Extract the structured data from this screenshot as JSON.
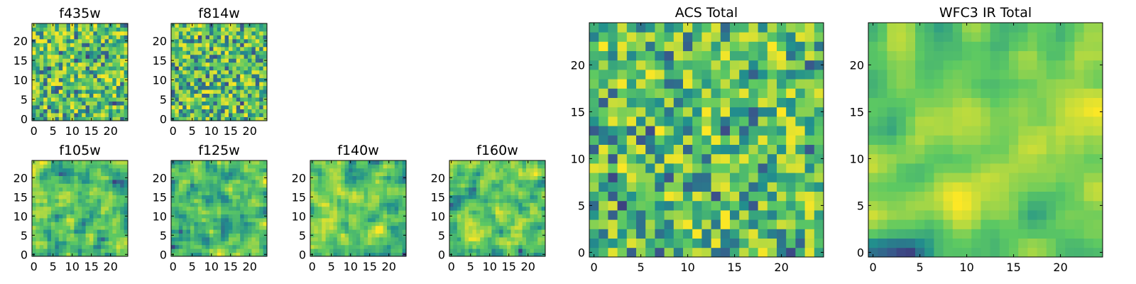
{
  "colormap": [
    "#440154",
    "#3b528b",
    "#21908d",
    "#5dc962",
    "#fde725"
  ],
  "chart_data": [
    {
      "type": "heatmap",
      "title": "f435w",
      "xticks": [
        0,
        5,
        10,
        15,
        20
      ],
      "yticks": [
        0,
        5,
        10,
        15,
        20
      ],
      "xlim": [
        0,
        24
      ],
      "ylim": [
        0,
        24
      ],
      "grid": false
    },
    {
      "type": "heatmap",
      "title": "f814w",
      "xticks": [
        0,
        5,
        10,
        15,
        20
      ],
      "yticks": [
        0,
        5,
        10,
        15,
        20
      ],
      "xlim": [
        0,
        24
      ],
      "ylim": [
        0,
        24
      ],
      "grid": false
    },
    {
      "type": "heatmap",
      "title": "f105w",
      "xticks": [
        0,
        5,
        10,
        15,
        20
      ],
      "yticks": [
        0,
        5,
        10,
        15,
        20
      ],
      "xlim": [
        0,
        24
      ],
      "ylim": [
        0,
        24
      ],
      "grid": false
    },
    {
      "type": "heatmap",
      "title": "f125w",
      "xticks": [
        0,
        5,
        10,
        15,
        20
      ],
      "yticks": [
        0,
        5,
        10,
        15,
        20
      ],
      "xlim": [
        0,
        24
      ],
      "ylim": [
        0,
        24
      ],
      "grid": false
    },
    {
      "type": "heatmap",
      "title": "f140w",
      "xticks": [
        0,
        5,
        10,
        15,
        20
      ],
      "yticks": [
        0,
        5,
        10,
        15,
        20
      ],
      "xlim": [
        0,
        24
      ],
      "ylim": [
        0,
        24
      ],
      "grid": false
    },
    {
      "type": "heatmap",
      "title": "f160w",
      "xticks": [
        0,
        5,
        10,
        15,
        20
      ],
      "yticks": [
        0,
        5,
        10,
        15,
        20
      ],
      "xlim": [
        0,
        24
      ],
      "ylim": [
        0,
        24
      ],
      "grid": false
    },
    {
      "type": "heatmap",
      "title": "ACS Total",
      "xticks": [
        0,
        5,
        10,
        15,
        20
      ],
      "yticks": [
        0,
        5,
        10,
        15,
        20
      ],
      "xlim": [
        0,
        24
      ],
      "ylim": [
        0,
        24
      ],
      "grid": false
    },
    {
      "type": "heatmap",
      "title": "WFC3 IR Total",
      "xticks": [
        0,
        5,
        10,
        15,
        20
      ],
      "yticks": [
        0,
        5,
        10,
        15,
        20
      ],
      "xlim": [
        0,
        24
      ],
      "ylim": [
        0,
        24
      ],
      "grid": false
    }
  ]
}
